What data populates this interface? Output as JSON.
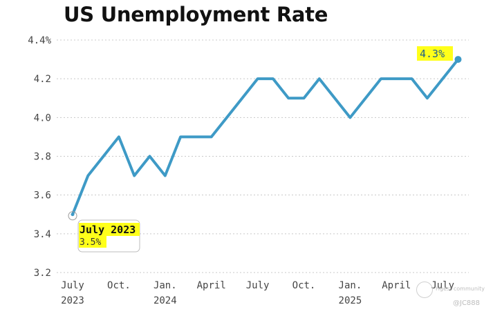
{
  "chart_data": {
    "type": "line",
    "title": "US Unemployment Rate",
    "ylim": [
      3.2,
      4.4
    ],
    "yticks": [
      {
        "value": 4.4,
        "label": "4.4%"
      },
      {
        "value": 4.2,
        "label": "4.2"
      },
      {
        "value": 4.0,
        "label": "4.0"
      },
      {
        "value": 3.8,
        "label": "3.8"
      },
      {
        "value": 3.6,
        "label": "3.6"
      },
      {
        "value": 3.4,
        "label": "3.4"
      },
      {
        "value": 3.2,
        "label": "3.2"
      }
    ],
    "xticks": [
      {
        "month": "2023-07",
        "label": "July",
        "sublabel": "2023"
      },
      {
        "month": "2023-10",
        "label": "Oct.",
        "sublabel": ""
      },
      {
        "month": "2024-01",
        "label": "Jan.",
        "sublabel": "2024"
      },
      {
        "month": "2024-04",
        "label": "April",
        "sublabel": ""
      },
      {
        "month": "2024-07",
        "label": "July",
        "sublabel": ""
      },
      {
        "month": "2024-10",
        "label": "Oct.",
        "sublabel": ""
      },
      {
        "month": "2025-01",
        "label": "Jan.",
        "sublabel": "2025"
      },
      {
        "month": "2025-04",
        "label": "April",
        "sublabel": ""
      },
      {
        "month": "2025-07",
        "label": "July",
        "sublabel": ""
      }
    ],
    "series": [
      {
        "x": [
          "2023-07",
          "2023-08",
          "2023-09",
          "2023-10",
          "2023-11",
          "2023-12",
          "2024-01",
          "2024-02",
          "2024-03",
          "2024-04",
          "2024-05",
          "2024-06",
          "2024-07",
          "2024-08",
          "2024-09",
          "2024-10",
          "2024-11",
          "2024-12",
          "2025-01",
          "2025-02",
          "2025-03",
          "2025-04",
          "2025-05",
          "2025-06",
          "2025-07",
          "2025-08"
        ],
        "values": [
          3.5,
          3.7,
          3.8,
          3.9,
          3.7,
          3.8,
          3.7,
          3.9,
          3.9,
          3.9,
          4.0,
          4.1,
          4.2,
          4.2,
          4.1,
          4.1,
          4.2,
          4.1,
          4.0,
          4.1,
          4.2,
          4.2,
          4.2,
          4.1,
          4.2,
          4.3
        ]
      }
    ],
    "annotations": [
      {
        "label": "July 2023",
        "value_label": "3.5%"
      },
      {
        "value_label": "4.3%"
      }
    ],
    "grid": "horizontal dotted",
    "colors": {
      "line": "#3e9ac6",
      "highlight": "#ffff1a",
      "grid": "#c8c8c8",
      "axis_text": "#444444"
    }
  },
  "watermark": {
    "line1": "Hgest community",
    "line2": "@JC888"
  }
}
